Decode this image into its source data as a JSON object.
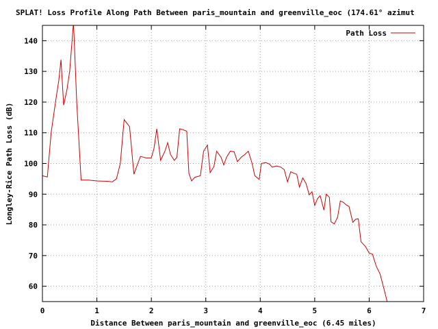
{
  "chart_data": {
    "type": "line",
    "title": "SPLAT! Loss Profile Along Path Between paris_mountain and greenville_eoc (174.61° azimut",
    "xlabel": "Distance Between paris_mountain and greenville_eoc (6.45 miles)",
    "ylabel": "Longley-Rice Path Loss (dB)",
    "xlim": [
      0,
      7
    ],
    "ylim": [
      55,
      145
    ],
    "x_ticks": [
      "0",
      "1",
      "2",
      "3",
      "4",
      "5",
      "6",
      "7"
    ],
    "y_ticks": [
      "60",
      "70",
      "80",
      "90",
      "100",
      "110",
      "120",
      "130",
      "140"
    ],
    "grid": true,
    "legend_position": "top-right",
    "series": [
      {
        "name": "Path Loss",
        "color": "#cc0000",
        "points": [
          [
            0.0,
            96.0
          ],
          [
            0.09,
            95.6
          ],
          [
            0.16,
            110.0
          ],
          [
            0.24,
            120.0
          ],
          [
            0.3,
            127.0
          ],
          [
            0.34,
            133.8
          ],
          [
            0.39,
            119.0
          ],
          [
            0.45,
            124.0
          ],
          [
            0.5,
            130.0
          ],
          [
            0.57,
            146.0
          ],
          [
            0.63,
            120.0
          ],
          [
            0.71,
            94.6
          ],
          [
            0.85,
            94.6
          ],
          [
            1.0,
            94.3
          ],
          [
            1.2,
            94.2
          ],
          [
            1.28,
            94.0
          ],
          [
            1.36,
            95.0
          ],
          [
            1.43,
            100.0
          ],
          [
            1.5,
            114.3
          ],
          [
            1.6,
            112.0
          ],
          [
            1.68,
            96.5
          ],
          [
            1.75,
            100.0
          ],
          [
            1.8,
            102.3
          ],
          [
            1.9,
            101.8
          ],
          [
            2.0,
            101.8
          ],
          [
            2.05,
            105.0
          ],
          [
            2.1,
            111.3
          ],
          [
            2.17,
            101.0
          ],
          [
            2.25,
            104.0
          ],
          [
            2.3,
            106.8
          ],
          [
            2.35,
            103.0
          ],
          [
            2.42,
            101.0
          ],
          [
            2.47,
            102.0
          ],
          [
            2.52,
            111.3
          ],
          [
            2.58,
            111.0
          ],
          [
            2.65,
            110.5
          ],
          [
            2.69,
            96.8
          ],
          [
            2.74,
            94.3
          ],
          [
            2.8,
            95.5
          ],
          [
            2.9,
            96.0
          ],
          [
            2.96,
            104.0
          ],
          [
            3.03,
            106.0
          ],
          [
            3.08,
            97.0
          ],
          [
            3.15,
            99.0
          ],
          [
            3.2,
            104.0
          ],
          [
            3.28,
            102.0
          ],
          [
            3.33,
            99.5
          ],
          [
            3.38,
            102.0
          ],
          [
            3.45,
            104.0
          ],
          [
            3.52,
            103.8
          ],
          [
            3.58,
            100.6
          ],
          [
            3.65,
            102.0
          ],
          [
            3.72,
            103.0
          ],
          [
            3.78,
            104.0
          ],
          [
            3.85,
            100.0
          ],
          [
            3.9,
            96.0
          ],
          [
            3.98,
            94.8
          ],
          [
            4.02,
            100.0
          ],
          [
            4.1,
            100.3
          ],
          [
            4.17,
            99.8
          ],
          [
            4.22,
            98.8
          ],
          [
            4.3,
            99.2
          ],
          [
            4.38,
            98.8
          ],
          [
            4.44,
            98.0
          ],
          [
            4.5,
            94.0
          ],
          [
            4.56,
            97.3
          ],
          [
            4.62,
            96.8
          ],
          [
            4.67,
            96.5
          ],
          [
            4.72,
            92.3
          ],
          [
            4.78,
            95.3
          ],
          [
            4.84,
            93.5
          ],
          [
            4.9,
            89.8
          ],
          [
            4.95,
            90.8
          ],
          [
            5.0,
            86.3
          ],
          [
            5.05,
            88.5
          ],
          [
            5.1,
            89.5
          ],
          [
            5.17,
            84.8
          ],
          [
            5.21,
            90.0
          ],
          [
            5.27,
            89.0
          ],
          [
            5.3,
            81.0
          ],
          [
            5.36,
            80.3
          ],
          [
            5.42,
            82.5
          ],
          [
            5.47,
            87.8
          ],
          [
            5.53,
            87.3
          ],
          [
            5.58,
            86.5
          ],
          [
            5.63,
            86.0
          ],
          [
            5.7,
            80.8
          ],
          [
            5.75,
            81.8
          ],
          [
            5.8,
            82.0
          ],
          [
            5.85,
            74.5
          ],
          [
            5.93,
            73.0
          ],
          [
            6.0,
            70.8
          ],
          [
            6.06,
            70.5
          ],
          [
            6.13,
            66.5
          ],
          [
            6.2,
            64.0
          ],
          [
            6.26,
            60.0
          ],
          [
            6.33,
            55.0
          ]
        ]
      }
    ]
  }
}
